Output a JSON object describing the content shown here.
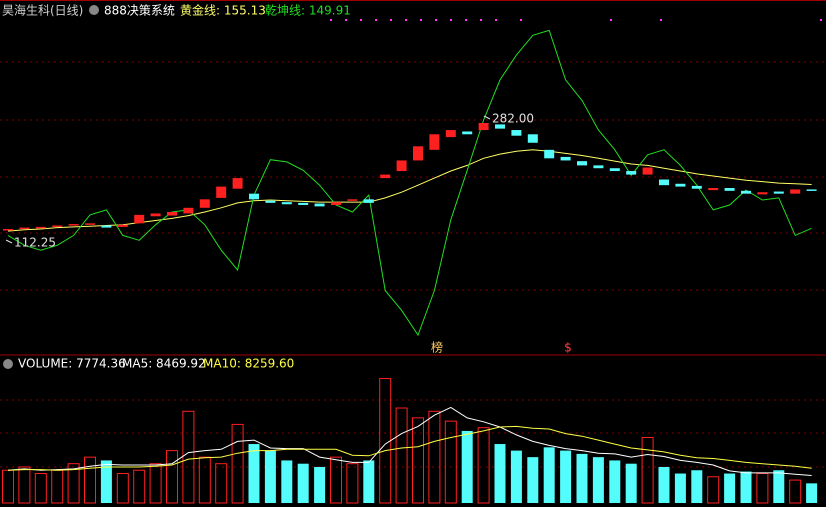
{
  "chart_data": [
    {
      "type": "candlestick",
      "title": "昊海生科(日线)",
      "subtitle": "888决策系统",
      "ylim": [
        -46,
        435
      ],
      "open": [
        126,
        128,
        129,
        131,
        133,
        134,
        133,
        131,
        136,
        146,
        147,
        150,
        158,
        172,
        185,
        178,
        168,
        166,
        165,
        164,
        162,
        168,
        170,
        200,
        210,
        225,
        240,
        258,
        266,
        268,
        276,
        268,
        262,
        240,
        230,
        224,
        218,
        214,
        210,
        205,
        198,
        192,
        189,
        183,
        186,
        182,
        177,
        181,
        178,
        184
      ],
      "close": [
        128,
        130,
        131,
        133,
        135,
        136,
        130,
        134,
        148,
        150,
        152,
        158,
        170,
        188,
        200,
        170,
        165,
        163,
        162,
        160,
        166,
        170,
        165,
        205,
        225,
        245,
        262,
        268,
        262,
        278,
        270,
        260,
        250,
        228,
        225,
        218,
        214,
        210,
        205,
        215,
        190,
        188,
        185,
        186,
        182,
        178,
        180,
        178,
        184,
        182
      ],
      "up_color": "#ff2020",
      "down_color": "#54fcfc",
      "series": [
        {
          "name": "黄金线: 155.13",
          "color": "#ffff66",
          "values": [
            125,
            127,
            128,
            130,
            131,
            132,
            133,
            134,
            137,
            140,
            143,
            147,
            152,
            158,
            165,
            168,
            169,
            168,
            167,
            166,
            166,
            166,
            166,
            172,
            180,
            190,
            200,
            210,
            218,
            228,
            234,
            238,
            240,
            238,
            235,
            232,
            228,
            224,
            220,
            218,
            214,
            210,
            206,
            203,
            200,
            197,
            195,
            193,
            192,
            191
          ]
        },
        {
          "name": "乾坤线: 149.91",
          "color": "#22dd22",
          "values": [
            119,
            105,
            98,
            105,
            119,
            148,
            155,
            119,
            112,
            134,
            152,
            155,
            134,
            98,
            70,
            176,
            226,
            223,
            211,
            190,
            162,
            152,
            176,
            41,
            13,
            -22,
            41,
            141,
            211,
            282,
            339,
            374,
            402,
            409,
            339,
            310,
            268,
            240,
            204,
            233,
            240,
            218,
            190,
            155,
            162,
            183,
            169,
            172,
            119,
            129
          ]
        }
      ],
      "annotations": [
        "112.25",
        "282.00",
        "榜",
        "$"
      ]
    },
    {
      "type": "bar",
      "ylim": [
        0,
        20000
      ],
      "values": [
        5000,
        5500,
        4500,
        5000,
        6000,
        7000,
        6500,
        4500,
        5000,
        6000,
        8000,
        14000,
        7000,
        6000,
        12000,
        9000,
        8000,
        6500,
        6000,
        5500,
        7000,
        6000,
        6500,
        19000,
        14500,
        13000,
        14000,
        12500,
        11000,
        11500,
        9000,
        8000,
        7000,
        8500,
        8000,
        7500,
        7000,
        6500,
        6000,
        10000,
        5500,
        4500,
        5000,
        4000,
        4500,
        4800,
        4500,
        5000,
        3500,
        3000
      ],
      "series_label": {
        "name": "VOLUME: 7774.36",
        "color": "#ffffff"
      },
      "series": [
        {
          "name": "MA5: 8469.92",
          "color": "#ffffff",
          "values": [
            5000,
            5200,
            5000,
            5100,
            5200,
            5600,
            5900,
            5800,
            5800,
            5800,
            6000,
            7700,
            8000,
            8200,
            9400,
            9600,
            8400,
            8300,
            8300,
            7000,
            6600,
            6200,
            6200,
            9000,
            10600,
            11700,
            13400,
            14600,
            13000,
            12400,
            11600,
            10400,
            9400,
            8800,
            8300,
            8000,
            7600,
            7500,
            7000,
            7400,
            7100,
            6500,
            6200,
            5800,
            4900,
            4600,
            4600,
            4600,
            4400,
            4200
          ]
        },
        {
          "name": "MA10: 8259.60",
          "color": "#ffff44",
          "values": [
            5000,
            5100,
            5100,
            5000,
            5100,
            5300,
            5500,
            5500,
            5500,
            5600,
            5800,
            6700,
            6900,
            7000,
            7600,
            8000,
            8000,
            8200,
            8200,
            8200,
            8200,
            7300,
            7200,
            8000,
            8400,
            8600,
            9400,
            10000,
            10500,
            11000,
            11600,
            11700,
            11400,
            11300,
            10600,
            10200,
            9600,
            9000,
            8400,
            8100,
            7800,
            7300,
            6900,
            6800,
            6500,
            6200,
            6000,
            5800,
            5600,
            5300
          ]
        }
      ]
    }
  ]
}
